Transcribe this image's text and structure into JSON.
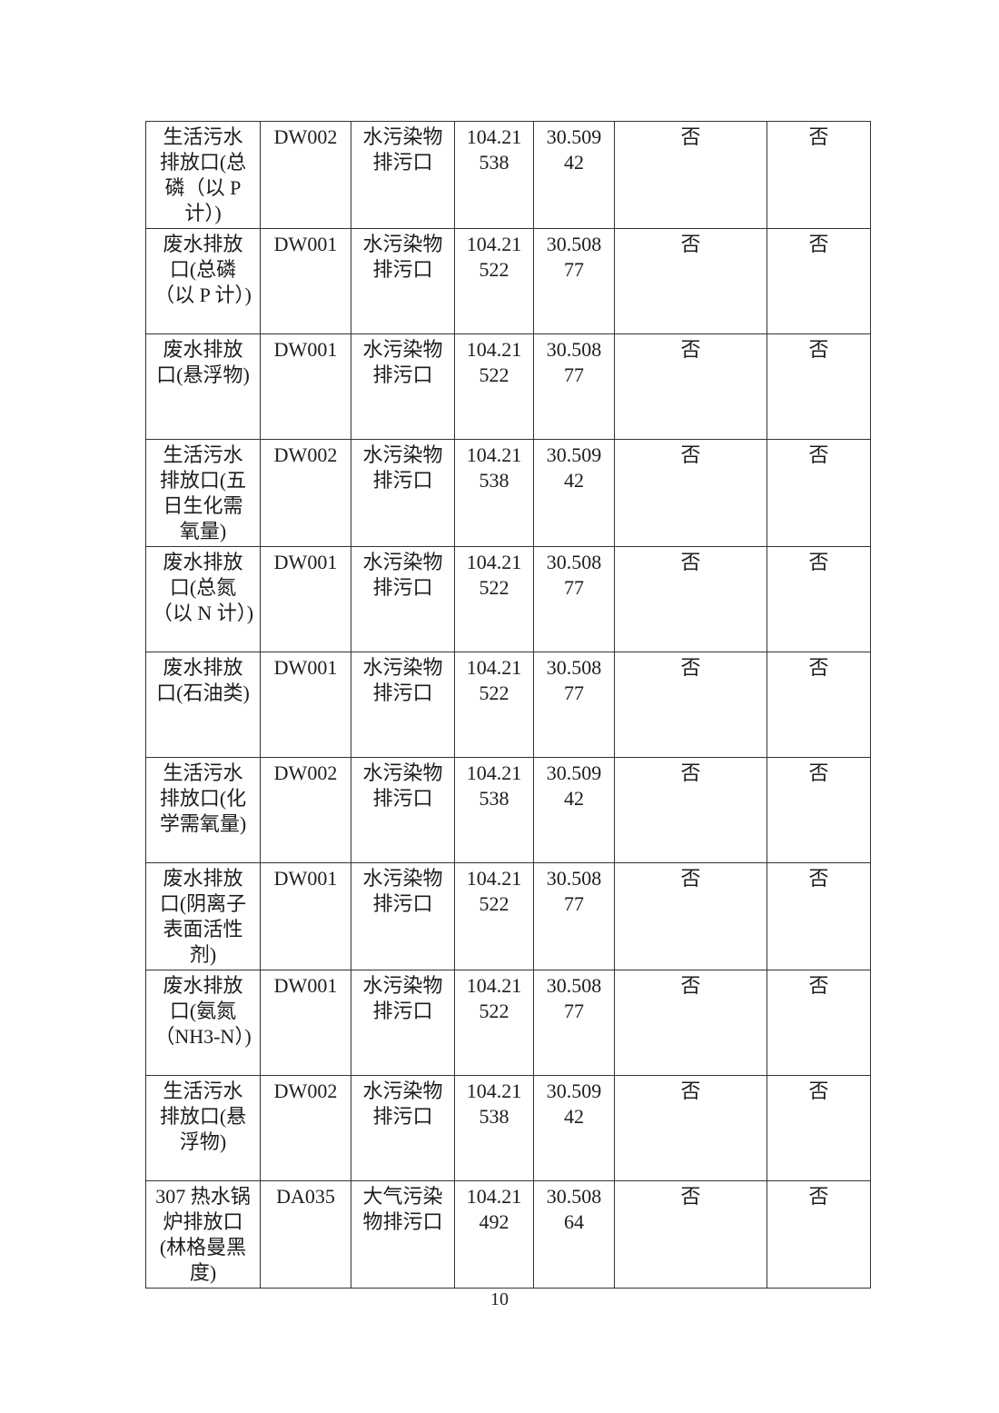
{
  "page": {
    "number": "10"
  },
  "table": {
    "description_note_colors": {
      "border": "#333333",
      "text": "#1d1d1d",
      "background": "#ffffff"
    },
    "rows": [
      {
        "name": "生活污水\n排放口(总\n磷（以 P\n计）)",
        "code": "DW002",
        "type": "水污染物\n排污口",
        "longitude": "104.21\n538",
        "latitude": "30.509\n42",
        "flag1": "否",
        "flag2": "否"
      },
      {
        "name": "废水排放\n口(总磷\n（以 P 计）)",
        "code": "DW001",
        "type": "水污染物\n排污口",
        "longitude": "104.21\n522",
        "latitude": "30.508\n77",
        "flag1": "否",
        "flag2": "否"
      },
      {
        "name": "废水排放\n口(悬浮物)",
        "code": "DW001",
        "type": "水污染物\n排污口",
        "longitude": "104.21\n522",
        "latitude": "30.508\n77",
        "flag1": "否",
        "flag2": "否"
      },
      {
        "name": "生活污水\n排放口(五\n日生化需\n氧量)",
        "code": "DW002",
        "type": "水污染物\n排污口",
        "longitude": "104.21\n538",
        "latitude": "30.509\n42",
        "flag1": "否",
        "flag2": "否"
      },
      {
        "name": "废水排放\n口(总氮\n（以 N 计）)",
        "code": "DW001",
        "type": "水污染物\n排污口",
        "longitude": "104.21\n522",
        "latitude": "30.508\n77",
        "flag1": "否",
        "flag2": "否"
      },
      {
        "name": "废水排放\n口(石油类)",
        "code": "DW001",
        "type": "水污染物\n排污口",
        "longitude": "104.21\n522",
        "latitude": "30.508\n77",
        "flag1": "否",
        "flag2": "否"
      },
      {
        "name": "生活污水\n排放口(化\n学需氧量)",
        "code": "DW002",
        "type": "水污染物\n排污口",
        "longitude": "104.21\n538",
        "latitude": "30.509\n42",
        "flag1": "否",
        "flag2": "否"
      },
      {
        "name": "废水排放\n口(阴离子\n表面活性\n剂)",
        "code": "DW001",
        "type": "水污染物\n排污口",
        "longitude": "104.21\n522",
        "latitude": "30.508\n77",
        "flag1": "否",
        "flag2": "否"
      },
      {
        "name": "废水排放\n口(氨氮\n（NH3-N）)",
        "code": "DW001",
        "type": "水污染物\n排污口",
        "longitude": "104.21\n522",
        "latitude": "30.508\n77",
        "flag1": "否",
        "flag2": "否"
      },
      {
        "name": "生活污水\n排放口(悬\n浮物)",
        "code": "DW002",
        "type": "水污染物\n排污口",
        "longitude": "104.21\n538",
        "latitude": "30.509\n42",
        "flag1": "否",
        "flag2": "否"
      },
      {
        "name": "307 热水锅\n炉排放口\n(林格曼黑\n度)",
        "code": "DA035",
        "type": "大气污染\n物排污口",
        "longitude": "104.21\n492",
        "latitude": "30.508\n64",
        "flag1": "否",
        "flag2": "否"
      }
    ]
  }
}
